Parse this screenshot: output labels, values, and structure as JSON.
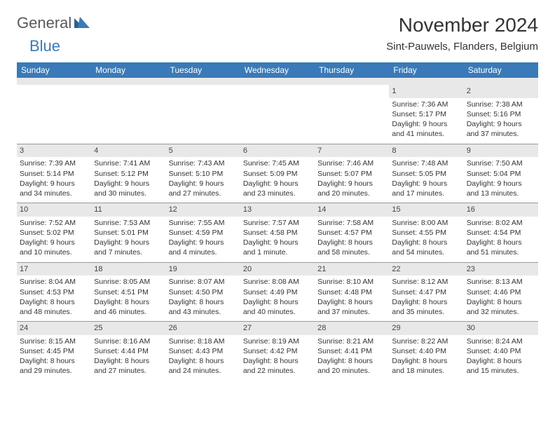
{
  "brand": {
    "general": "General",
    "blue": "Blue"
  },
  "title": "November 2024",
  "location": "Sint-Pauwels, Flanders, Belgium",
  "colors": {
    "header_bg": "#3a7ab8",
    "daynum_bg": "#e8e8e8",
    "border": "#999999",
    "text": "#333333",
    "page_bg": "#ffffff"
  },
  "weekdays": [
    "Sunday",
    "Monday",
    "Tuesday",
    "Wednesday",
    "Thursday",
    "Friday",
    "Saturday"
  ],
  "weeks": [
    [
      {
        "day": "",
        "lines": []
      },
      {
        "day": "",
        "lines": []
      },
      {
        "day": "",
        "lines": []
      },
      {
        "day": "",
        "lines": []
      },
      {
        "day": "",
        "lines": []
      },
      {
        "day": "1",
        "lines": [
          "Sunrise: 7:36 AM",
          "Sunset: 5:17 PM",
          "Daylight: 9 hours and 41 minutes."
        ]
      },
      {
        "day": "2",
        "lines": [
          "Sunrise: 7:38 AM",
          "Sunset: 5:16 PM",
          "Daylight: 9 hours and 37 minutes."
        ]
      }
    ],
    [
      {
        "day": "3",
        "lines": [
          "Sunrise: 7:39 AM",
          "Sunset: 5:14 PM",
          "Daylight: 9 hours and 34 minutes."
        ]
      },
      {
        "day": "4",
        "lines": [
          "Sunrise: 7:41 AM",
          "Sunset: 5:12 PM",
          "Daylight: 9 hours and 30 minutes."
        ]
      },
      {
        "day": "5",
        "lines": [
          "Sunrise: 7:43 AM",
          "Sunset: 5:10 PM",
          "Daylight: 9 hours and 27 minutes."
        ]
      },
      {
        "day": "6",
        "lines": [
          "Sunrise: 7:45 AM",
          "Sunset: 5:09 PM",
          "Daylight: 9 hours and 23 minutes."
        ]
      },
      {
        "day": "7",
        "lines": [
          "Sunrise: 7:46 AM",
          "Sunset: 5:07 PM",
          "Daylight: 9 hours and 20 minutes."
        ]
      },
      {
        "day": "8",
        "lines": [
          "Sunrise: 7:48 AM",
          "Sunset: 5:05 PM",
          "Daylight: 9 hours and 17 minutes."
        ]
      },
      {
        "day": "9",
        "lines": [
          "Sunrise: 7:50 AM",
          "Sunset: 5:04 PM",
          "Daylight: 9 hours and 13 minutes."
        ]
      }
    ],
    [
      {
        "day": "10",
        "lines": [
          "Sunrise: 7:52 AM",
          "Sunset: 5:02 PM",
          "Daylight: 9 hours and 10 minutes."
        ]
      },
      {
        "day": "11",
        "lines": [
          "Sunrise: 7:53 AM",
          "Sunset: 5:01 PM",
          "Daylight: 9 hours and 7 minutes."
        ]
      },
      {
        "day": "12",
        "lines": [
          "Sunrise: 7:55 AM",
          "Sunset: 4:59 PM",
          "Daylight: 9 hours and 4 minutes."
        ]
      },
      {
        "day": "13",
        "lines": [
          "Sunrise: 7:57 AM",
          "Sunset: 4:58 PM",
          "Daylight: 9 hours and 1 minute."
        ]
      },
      {
        "day": "14",
        "lines": [
          "Sunrise: 7:58 AM",
          "Sunset: 4:57 PM",
          "Daylight: 8 hours and 58 minutes."
        ]
      },
      {
        "day": "15",
        "lines": [
          "Sunrise: 8:00 AM",
          "Sunset: 4:55 PM",
          "Daylight: 8 hours and 54 minutes."
        ]
      },
      {
        "day": "16",
        "lines": [
          "Sunrise: 8:02 AM",
          "Sunset: 4:54 PM",
          "Daylight: 8 hours and 51 minutes."
        ]
      }
    ],
    [
      {
        "day": "17",
        "lines": [
          "Sunrise: 8:04 AM",
          "Sunset: 4:53 PM",
          "Daylight: 8 hours and 48 minutes."
        ]
      },
      {
        "day": "18",
        "lines": [
          "Sunrise: 8:05 AM",
          "Sunset: 4:51 PM",
          "Daylight: 8 hours and 46 minutes."
        ]
      },
      {
        "day": "19",
        "lines": [
          "Sunrise: 8:07 AM",
          "Sunset: 4:50 PM",
          "Daylight: 8 hours and 43 minutes."
        ]
      },
      {
        "day": "20",
        "lines": [
          "Sunrise: 8:08 AM",
          "Sunset: 4:49 PM",
          "Daylight: 8 hours and 40 minutes."
        ]
      },
      {
        "day": "21",
        "lines": [
          "Sunrise: 8:10 AM",
          "Sunset: 4:48 PM",
          "Daylight: 8 hours and 37 minutes."
        ]
      },
      {
        "day": "22",
        "lines": [
          "Sunrise: 8:12 AM",
          "Sunset: 4:47 PM",
          "Daylight: 8 hours and 35 minutes."
        ]
      },
      {
        "day": "23",
        "lines": [
          "Sunrise: 8:13 AM",
          "Sunset: 4:46 PM",
          "Daylight: 8 hours and 32 minutes."
        ]
      }
    ],
    [
      {
        "day": "24",
        "lines": [
          "Sunrise: 8:15 AM",
          "Sunset: 4:45 PM",
          "Daylight: 8 hours and 29 minutes."
        ]
      },
      {
        "day": "25",
        "lines": [
          "Sunrise: 8:16 AM",
          "Sunset: 4:44 PM",
          "Daylight: 8 hours and 27 minutes."
        ]
      },
      {
        "day": "26",
        "lines": [
          "Sunrise: 8:18 AM",
          "Sunset: 4:43 PM",
          "Daylight: 8 hours and 24 minutes."
        ]
      },
      {
        "day": "27",
        "lines": [
          "Sunrise: 8:19 AM",
          "Sunset: 4:42 PM",
          "Daylight: 8 hours and 22 minutes."
        ]
      },
      {
        "day": "28",
        "lines": [
          "Sunrise: 8:21 AM",
          "Sunset: 4:41 PM",
          "Daylight: 8 hours and 20 minutes."
        ]
      },
      {
        "day": "29",
        "lines": [
          "Sunrise: 8:22 AM",
          "Sunset: 4:40 PM",
          "Daylight: 8 hours and 18 minutes."
        ]
      },
      {
        "day": "30",
        "lines": [
          "Sunrise: 8:24 AM",
          "Sunset: 4:40 PM",
          "Daylight: 8 hours and 15 minutes."
        ]
      }
    ]
  ]
}
